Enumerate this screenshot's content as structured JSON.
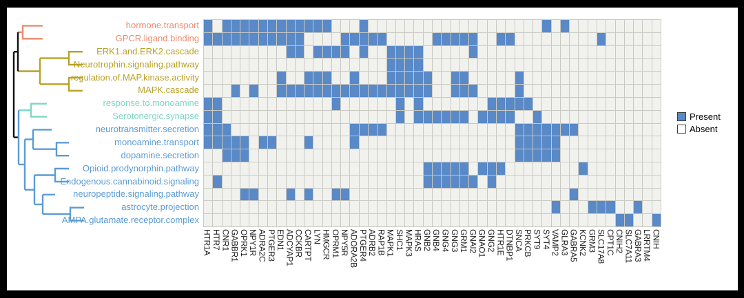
{
  "figure": {
    "description": "Binary heatmap of gene membership in neuro-related pathways with hierarchical clustering dendrogram on pathway rows",
    "background": "#ffffff",
    "frame_color": "#000000"
  },
  "legend": {
    "items": [
      {
        "label": "Present",
        "color": "#5989C7"
      },
      {
        "label": "Absent",
        "color": "#FFFFFF"
      }
    ]
  },
  "colors": {
    "present": "#5989C7",
    "absent": "#F1F1EE",
    "grid_line": "#C9C9C3",
    "salmon": "#ED8A6F",
    "gold": "#B9A125",
    "teal": "#7FD6C4",
    "blue": "#5B9BD5",
    "black": "#111111",
    "column_label": "#1d1d1d"
  },
  "chart_data": {
    "type": "heatmap",
    "encoding": "1 = Present (blue), 0 = Absent (white)",
    "legend_position": "right",
    "columns": [
      "HTR1A",
      "HTR7",
      "CNR1",
      "GABBR1",
      "OPRK1",
      "NPY1R",
      "ADRA2C",
      "PTGER3",
      "EDN1",
      "ADCYAP1",
      "CCKBR",
      "CARTPT",
      "LYN",
      "HMGCR",
      "OPRM1",
      "NPY5R",
      "ADORA2B",
      "PTGER4",
      "ADRB2",
      "RAP1B",
      "MAPK1",
      "SHC1",
      "MAPK3",
      "HRAS",
      "GNB2",
      "GNB4",
      "GNG4",
      "GNG3",
      "GRM1",
      "GNAI2",
      "GNAO1",
      "GNG2",
      "HTR1E",
      "DTNBP1",
      "SNCA",
      "PRKCB",
      "SYT9",
      "SYT4",
      "VAMP2",
      "GLRA3",
      "GABRA5",
      "KCNK2",
      "GRM3",
      "SLC17A8",
      "CPT1C",
      "CNIH2",
      "SLC7A11",
      "GABRA3",
      "LRRTM4",
      "CNIH"
    ],
    "rows": [
      {
        "label": "hormone.transport",
        "cluster": "salmon",
        "cells": "10111111111111000100000000000000000001010000000000"
      },
      {
        "label": "GPCR.ligand.binding",
        "cluster": "salmon",
        "cells": "11111111111000011111000001111100110000000001000000"
      },
      {
        "label": "ERK1.and.ERK2.cascade",
        "cluster": "gold",
        "cells": "00000000011011110100111100000100000000000000000000"
      },
      {
        "label": "Neurotrophin.signaling.pathway",
        "cluster": "gold",
        "cells": "00000000000000000000111100000000000000000000000000"
      },
      {
        "label": "regulation.of.MAP.kinase.activity",
        "cluster": "gold",
        "cells": "00000000100111001000111110011000001000000000000000"
      },
      {
        "label": "MAPK.cascade",
        "cluster": "gold",
        "cells": "00010100111111111111111110011100001000000000000000"
      },
      {
        "label": "response.to.monoamine",
        "cluster": "teal",
        "cells": "11000000000000100000010100000001111100000000000000"
      },
      {
        "label": "Serotonergic.synapse",
        "cluster": "teal",
        "cells": "11000000000000000000010111111011110010000000000000"
      },
      {
        "label": "neurotransmitter.secretion",
        "cluster": "blue",
        "cells": "11100000000000001111000000000000001111111000000000"
      },
      {
        "label": "monoamine.transport",
        "cluster": "blue",
        "cells": "11111011000100001000000000000000001111100000000000"
      },
      {
        "label": "dopamine.secretion",
        "cluster": "blue",
        "cells": "00111000000000000000000000000000001111100000000000"
      },
      {
        "label": "Opioid.prodynorphin.pathway",
        "cluster": "blue",
        "cells": "00000000000000000000000011111011100000000100000000"
      },
      {
        "label": "Endogenous.cannabinoid.signaling",
        "cluster": "blue",
        "cells": "01000000000000000000000011111101000000000000000000"
      },
      {
        "label": "neuropeptide.signaling.pathway",
        "cluster": "blue",
        "cells": "00001100010100110000000000000000000000001000000000"
      },
      {
        "label": "astrocyte.projection",
        "cluster": "blue",
        "cells": "00000000000000000000000000000000000000100011100100"
      },
      {
        "label": "AMPA.glutamate.receptor.complex",
        "cluster": "blue",
        "cells": "00000000000000000000000000000000000000000000011001"
      }
    ]
  }
}
